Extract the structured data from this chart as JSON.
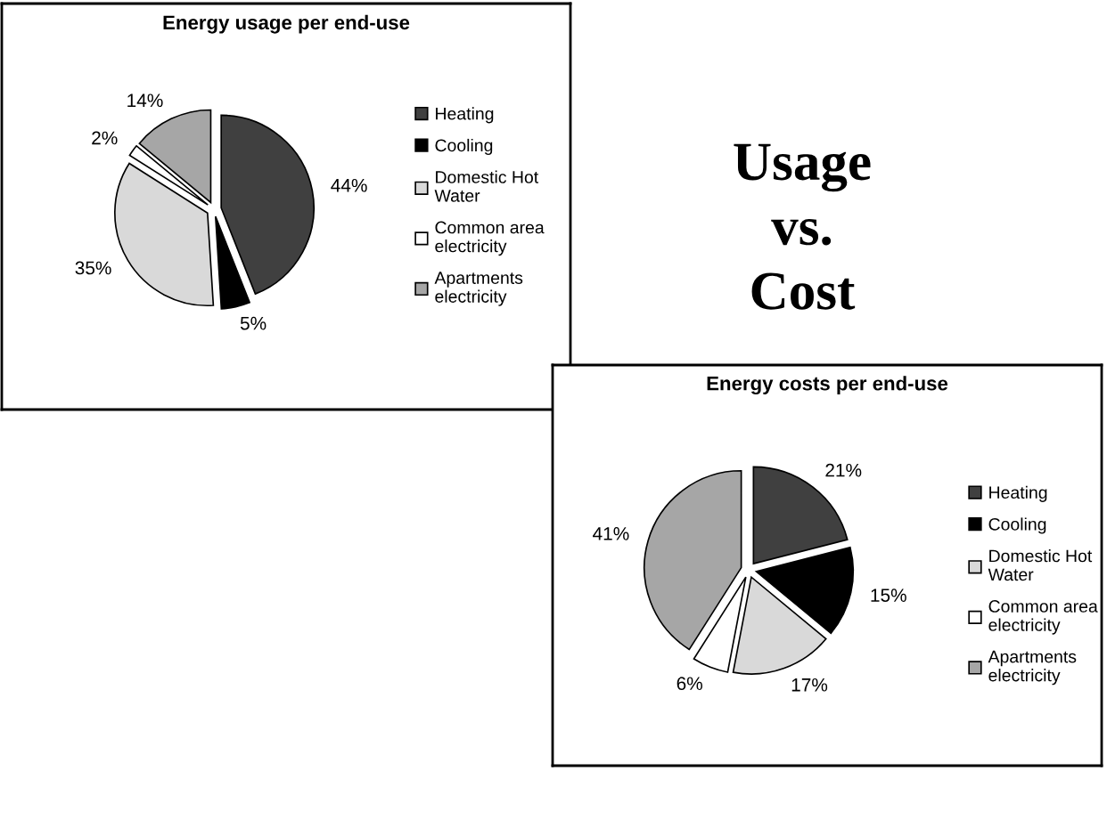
{
  "chart_data": [
    {
      "type": "pie",
      "title": "Energy usage per end-use",
      "categories": [
        "Heating",
        "Cooling",
        "Domestic Hot Water",
        "Common area electricity",
        "Apartments electricity"
      ],
      "values": [
        44,
        5,
        35,
        2,
        14
      ],
      "value_labels": [
        "44%",
        "5%",
        "35%",
        "2%",
        "14%"
      ],
      "colors": [
        "#404040",
        "#000000",
        "#d9d9d9",
        "#ffffff",
        "#a6a6a6"
      ],
      "legend": "right"
    },
    {
      "type": "other",
      "annotations": [
        "Usage\nvs.\nCost"
      ]
    },
    {
      "type": "pie",
      "title": "Energy costs per end-use",
      "categories": [
        "Heating",
        "Cooling",
        "Domestic Hot Water",
        "Common area electricity",
        "Apartments electricity"
      ],
      "values": [
        21,
        15,
        17,
        6,
        41
      ],
      "value_labels": [
        "21%",
        "15%",
        "17%",
        "6%",
        "41%"
      ],
      "colors": [
        "#404040",
        "#000000",
        "#d9d9d9",
        "#ffffff",
        "#a6a6a6"
      ],
      "legend": "right"
    }
  ]
}
